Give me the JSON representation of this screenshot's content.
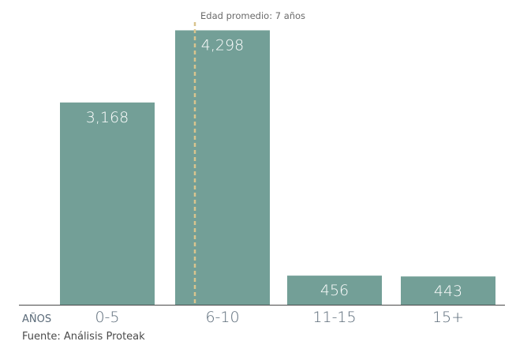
{
  "chart_data": {
    "type": "bar",
    "categories": [
      "0-5",
      "6-10",
      "11-15",
      "15+"
    ],
    "values": [
      3168,
      4298,
      456,
      443
    ],
    "value_labels": [
      "3,168",
      "4,298",
      "456",
      "443"
    ],
    "title": "",
    "xlabel": "AÑOS",
    "ylabel": "",
    "ylim": [
      0,
      4600
    ],
    "grid": false,
    "annotation": {
      "text": "Edad promedio: 7 años",
      "x_value": 7
    },
    "source": "Fuente: Análisis Proteak",
    "colors": {
      "bar": "#739f97",
      "axis": "#4a4a4a",
      "annotation_line": "#d9c48e"
    }
  }
}
